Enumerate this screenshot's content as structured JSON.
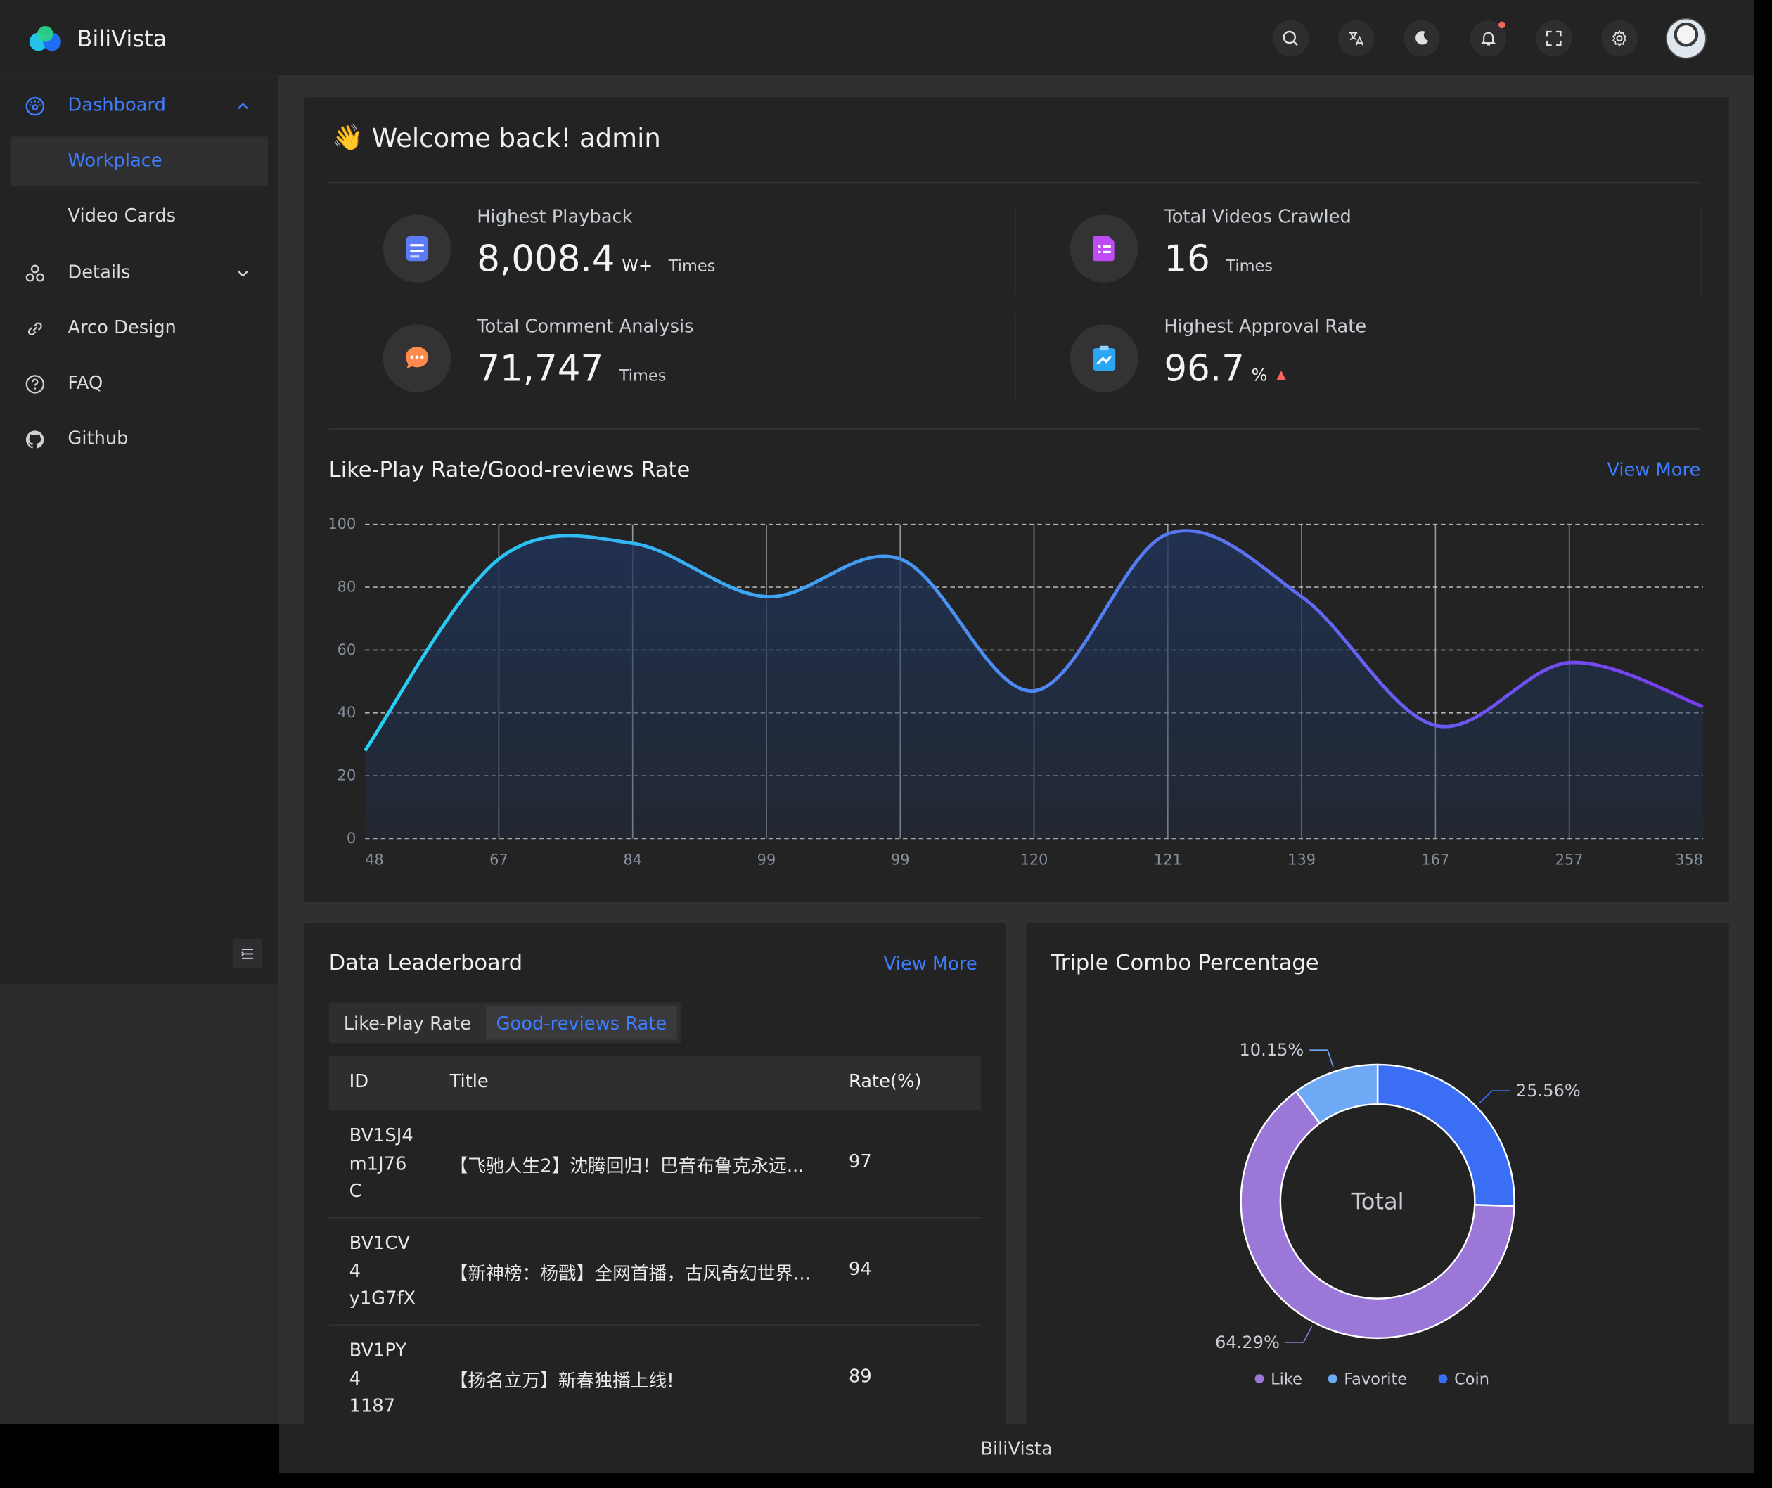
{
  "app": {
    "name": "BiliVista"
  },
  "sidebar": {
    "items": [
      {
        "label": "Dashboard",
        "icon": "dashboard-icon"
      },
      {
        "label": "Details",
        "icon": "details-icon"
      },
      {
        "label": "Arco Design",
        "icon": "link-icon"
      },
      {
        "label": "FAQ",
        "icon": "question-icon"
      },
      {
        "label": "Github",
        "icon": "github-icon"
      }
    ],
    "dashboard_children": [
      "Workplace",
      "Video Cards"
    ]
  },
  "welcome": {
    "emoji": "👋",
    "text": "Welcome back! admin"
  },
  "stats": [
    {
      "label": "Highest Playback",
      "value": "8,008.4",
      "unit": "W+",
      "suffix": "Times",
      "icon": "document-icon",
      "color": "#5b7bf7"
    },
    {
      "label": "Total Videos Crawled",
      "value": "16",
      "unit": "",
      "suffix": "Times",
      "icon": "list-icon",
      "color": "#c04bf5"
    },
    {
      "label": "Total Comment Analysis",
      "value": "71,747",
      "unit": "",
      "suffix": "Times",
      "icon": "comment-icon",
      "color": "#ff8a4c"
    },
    {
      "label": "Highest Approval Rate",
      "value": "96.7",
      "unit": "%",
      "suffix": "▲",
      "icon": "chart-up-icon",
      "color": "#29a7f5"
    }
  ],
  "line_chart_section": {
    "title": "Like-Play Rate/Good-reviews Rate",
    "view_more": "View More"
  },
  "leaderboard": {
    "title": "Data Leaderboard",
    "view_more": "View More",
    "tabs": [
      "Like-Play Rate",
      "Good-reviews Rate"
    ],
    "active_tab": 1,
    "columns": [
      "ID",
      "Title",
      "Rate(%)"
    ],
    "rows": [
      {
        "id": "BV1SJ4m1J76C",
        "title": "【飞驰人生2】沈腾回归！巴音布鲁克永远...",
        "rate": "97"
      },
      {
        "id": "BV1CV4y1G7fX",
        "title": "【新神榜：杨戬】全网首播，古风奇幻世界...",
        "rate": "94"
      },
      {
        "id": "BV1PY41187",
        "title": "【扬名立万】新春独播上线!",
        "rate": "89"
      }
    ]
  },
  "donut_section": {
    "title": "Triple Combo Percentage",
    "center_label": "Total"
  },
  "footer": {
    "text": "BiliVista"
  },
  "colors": {
    "accent": "#3c7eff",
    "up_arrow": "#f76560"
  },
  "chart_data": [
    {
      "type": "area",
      "title": "",
      "categories": [
        "48",
        "67",
        "84",
        "99",
        "99",
        "120",
        "121",
        "139",
        "167",
        "257",
        "358"
      ],
      "values": [
        28,
        89,
        94,
        77,
        89,
        47,
        97,
        77,
        36,
        56,
        42
      ],
      "ylim": [
        0,
        100
      ],
      "yticks": [
        0,
        20,
        40,
        60,
        80,
        100
      ],
      "grid": true,
      "gradient": [
        "#23d3f5",
        "#7b3cf0"
      ]
    },
    {
      "type": "pie",
      "title": "",
      "center_label": "Total",
      "slices": [
        {
          "name": "Coin",
          "value": 25.56,
          "label": "25.56%",
          "color": "#3a6ef5"
        },
        {
          "name": "Like",
          "value": 64.29,
          "label": "64.29%",
          "color": "#9b78d8"
        },
        {
          "name": "Favorite",
          "value": 10.15,
          "label": "10.15%",
          "color": "#6ea9f5"
        }
      ],
      "legend": [
        {
          "name": "Like",
          "color": "#9b78d8"
        },
        {
          "name": "Favorite",
          "color": "#6ea9f5"
        },
        {
          "name": "Coin",
          "color": "#3a6ef5"
        }
      ],
      "legend_position": "bottom"
    }
  ]
}
